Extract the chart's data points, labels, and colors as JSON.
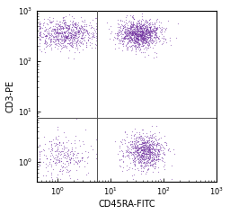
{
  "xlim": [
    0.4,
    1000
  ],
  "ylim": [
    0.4,
    1000
  ],
  "xlabel": "CD45RA-FITC",
  "ylabel": "CD3-PE",
  "gate_x": 5.5,
  "gate_y": 7.5,
  "dot_color": "#7030A0",
  "dot_alpha": 0.55,
  "dot_size": 0.8,
  "background_color": "#ffffff",
  "n_q2_tl": 700,
  "n_q1_tr": 1100,
  "n_q3_bl": 250,
  "n_q4_br": 800,
  "seed": 7
}
